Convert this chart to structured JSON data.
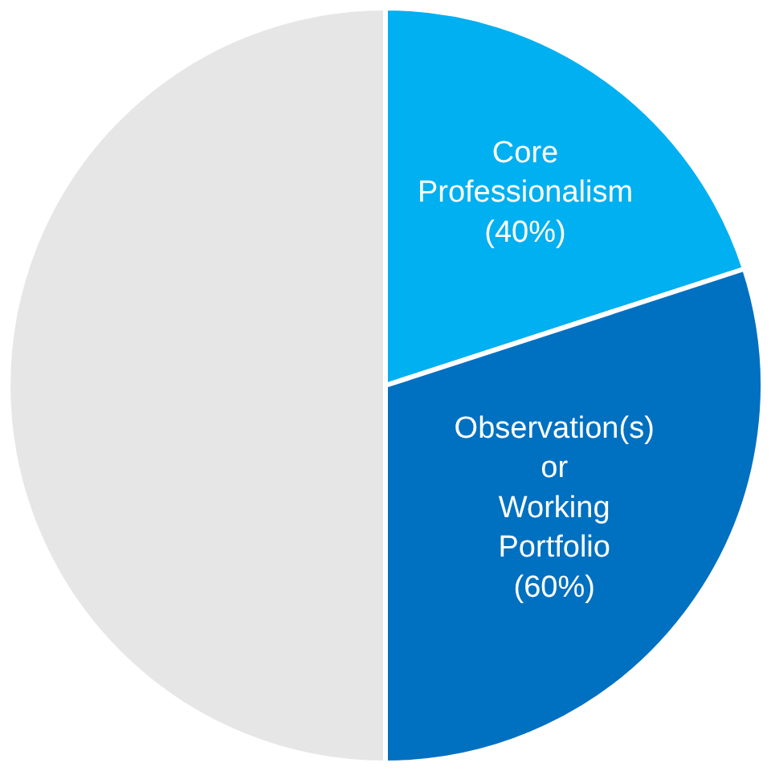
{
  "chart_data": {
    "type": "pie",
    "categories": [
      "Core Professionalism",
      "Observation(s) or Working Portfolio",
      null
    ],
    "values": [
      40,
      60,
      100
    ],
    "value_labels": [
      "(40%)",
      "(60%)",
      null
    ],
    "colors": [
      "#00b0f0",
      "#0070c0",
      "#e6e6e6"
    ],
    "legend": false
  }
}
